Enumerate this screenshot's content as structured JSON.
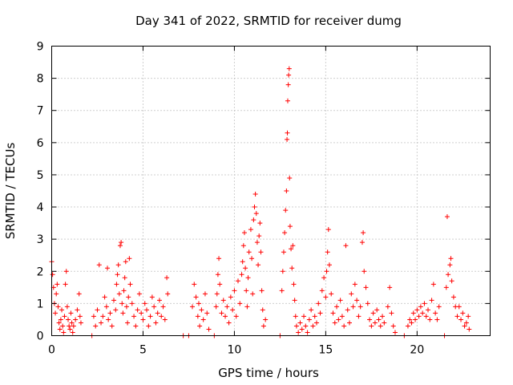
{
  "chart_data": {
    "type": "scatter",
    "title": "Day 341 of 2022, SRMTID for receiver dumg",
    "xlabel": "GPS time / hours",
    "ylabel": "SRMTID / TECUs",
    "xlim": [
      0,
      24
    ],
    "ylim": [
      0,
      9
    ],
    "xticks": [
      "0",
      "5",
      "10",
      "15",
      "20"
    ],
    "yticks": [
      "0",
      "1",
      "2",
      "3",
      "4",
      "5",
      "6",
      "7",
      "8",
      "9"
    ],
    "grid": true,
    "marker": "+",
    "color": "#ff0000",
    "series": [
      {
        "points": [
          [
            0.0,
            2.3
          ],
          [
            0.05,
            1.9
          ],
          [
            0.1,
            1.5
          ],
          [
            0.15,
            1.0
          ],
          [
            0.2,
            0.7
          ],
          [
            0.25,
            1.3
          ],
          [
            0.3,
            1.6
          ],
          [
            0.35,
            0.9
          ],
          [
            0.4,
            0.4
          ],
          [
            0.45,
            0.2
          ],
          [
            0.5,
            0.5
          ],
          [
            0.55,
            0.8
          ],
          [
            0.6,
            0.3
          ],
          [
            0.65,
            0.1
          ],
          [
            0.7,
            0.6
          ],
          [
            0.75,
            1.6
          ],
          [
            0.8,
            2.0
          ],
          [
            0.85,
            0.9
          ],
          [
            0.9,
            0.5
          ],
          [
            0.95,
            0.3
          ],
          [
            1.0,
            0.2
          ],
          [
            1.05,
            0.7
          ],
          [
            1.1,
            0.4
          ],
          [
            1.15,
            0.1
          ],
          [
            1.2,
            0.3
          ],
          [
            1.3,
            0.5
          ],
          [
            1.4,
            0.8
          ],
          [
            1.5,
            1.3
          ],
          [
            1.55,
            0.6
          ],
          [
            1.6,
            0.4
          ],
          [
            2.2,
            0.0
          ],
          [
            2.3,
            0.6
          ],
          [
            2.4,
            0.3
          ],
          [
            2.5,
            0.8
          ],
          [
            2.6,
            2.2
          ],
          [
            2.7,
            0.4
          ],
          [
            2.8,
            0.6
          ],
          [
            2.9,
            1.2
          ],
          [
            3.0,
            0.9
          ],
          [
            3.05,
            2.1
          ],
          [
            3.1,
            0.5
          ],
          [
            3.2,
            0.7
          ],
          [
            3.3,
            0.3
          ],
          [
            3.4,
            1.1
          ],
          [
            3.5,
            0.8
          ],
          [
            3.55,
            1.6
          ],
          [
            3.6,
            1.9
          ],
          [
            3.65,
            2.2
          ],
          [
            3.7,
            1.3
          ],
          [
            3.75,
            2.8
          ],
          [
            3.8,
            2.9
          ],
          [
            3.85,
            1.0
          ],
          [
            3.9,
            0.7
          ],
          [
            3.95,
            1.4
          ],
          [
            4.0,
            1.8
          ],
          [
            4.05,
            2.3
          ],
          [
            4.1,
            0.9
          ],
          [
            4.15,
            0.4
          ],
          [
            4.2,
            1.2
          ],
          [
            4.25,
            2.4
          ],
          [
            4.3,
            1.6
          ],
          [
            4.4,
            1.0
          ],
          [
            4.5,
            0.6
          ],
          [
            4.6,
            0.3
          ],
          [
            4.7,
            0.8
          ],
          [
            4.8,
            1.3
          ],
          [
            4.9,
            0.7
          ],
          [
            5.0,
            0.5
          ],
          [
            5.1,
            1.0
          ],
          [
            5.2,
            0.8
          ],
          [
            5.3,
            0.3
          ],
          [
            5.4,
            0.6
          ],
          [
            5.5,
            1.2
          ],
          [
            5.6,
            0.9
          ],
          [
            5.7,
            0.4
          ],
          [
            5.8,
            0.7
          ],
          [
            5.9,
            1.1
          ],
          [
            6.0,
            0.6
          ],
          [
            6.1,
            0.9
          ],
          [
            6.2,
            0.5
          ],
          [
            6.3,
            1.8
          ],
          [
            6.35,
            1.3
          ],
          [
            7.2,
            0.0
          ],
          [
            7.5,
            0.0
          ],
          [
            7.7,
            0.9
          ],
          [
            7.8,
            1.6
          ],
          [
            7.9,
            1.2
          ],
          [
            8.0,
            0.6
          ],
          [
            8.05,
            1.0
          ],
          [
            8.1,
            0.3
          ],
          [
            8.2,
            0.8
          ],
          [
            8.3,
            0.5
          ],
          [
            8.4,
            1.3
          ],
          [
            8.5,
            0.7
          ],
          [
            8.6,
            0.2
          ],
          [
            8.9,
            0.0
          ],
          [
            9.0,
            0.9
          ],
          [
            9.05,
            1.3
          ],
          [
            9.1,
            1.9
          ],
          [
            9.15,
            2.4
          ],
          [
            9.2,
            1.6
          ],
          [
            9.3,
            0.7
          ],
          [
            9.4,
            1.1
          ],
          [
            9.5,
            0.6
          ],
          [
            9.6,
            0.9
          ],
          [
            9.7,
            0.4
          ],
          [
            9.8,
            1.2
          ],
          [
            9.9,
            0.8
          ],
          [
            10.0,
            1.4
          ],
          [
            10.1,
            0.6
          ],
          [
            10.2,
            1.7
          ],
          [
            10.3,
            1.0
          ],
          [
            10.4,
            1.9
          ],
          [
            10.45,
            2.3
          ],
          [
            10.5,
            2.8
          ],
          [
            10.55,
            3.2
          ],
          [
            10.6,
            2.1
          ],
          [
            10.65,
            1.4
          ],
          [
            10.7,
            0.9
          ],
          [
            10.75,
            1.8
          ],
          [
            10.8,
            2.6
          ],
          [
            10.9,
            3.3
          ],
          [
            10.95,
            2.4
          ],
          [
            11.0,
            1.3
          ],
          [
            11.05,
            3.6
          ],
          [
            11.1,
            4.0
          ],
          [
            11.15,
            4.4
          ],
          [
            11.2,
            3.8
          ],
          [
            11.25,
            2.9
          ],
          [
            11.3,
            2.2
          ],
          [
            11.35,
            3.1
          ],
          [
            11.4,
            3.5
          ],
          [
            11.45,
            2.6
          ],
          [
            11.5,
            1.4
          ],
          [
            11.55,
            0.8
          ],
          [
            11.6,
            0.3
          ],
          [
            11.7,
            0.5
          ],
          [
            12.5,
            0.0
          ],
          [
            12.6,
            1.4
          ],
          [
            12.65,
            2.0
          ],
          [
            12.7,
            2.6
          ],
          [
            12.75,
            3.2
          ],
          [
            12.8,
            3.9
          ],
          [
            12.85,
            4.5
          ],
          [
            12.88,
            6.1
          ],
          [
            12.9,
            6.3
          ],
          [
            12.92,
            7.3
          ],
          [
            12.95,
            7.8
          ],
          [
            12.97,
            8.1
          ],
          [
            13.0,
            8.3
          ],
          [
            13.02,
            4.9
          ],
          [
            13.05,
            3.4
          ],
          [
            13.1,
            2.7
          ],
          [
            13.15,
            2.1
          ],
          [
            13.2,
            2.8
          ],
          [
            13.25,
            1.6
          ],
          [
            13.3,
            1.1
          ],
          [
            13.35,
            0.6
          ],
          [
            13.4,
            0.3
          ],
          [
            13.5,
            0.1
          ],
          [
            13.6,
            0.4
          ],
          [
            13.7,
            0.2
          ],
          [
            13.8,
            0.6
          ],
          [
            13.9,
            0.3
          ],
          [
            14.0,
            0.1
          ],
          [
            14.1,
            0.5
          ],
          [
            14.2,
            0.8
          ],
          [
            14.3,
            0.3
          ],
          [
            14.4,
            0.6
          ],
          [
            14.5,
            0.4
          ],
          [
            14.6,
            1.0
          ],
          [
            14.7,
            0.7
          ],
          [
            14.8,
            1.4
          ],
          [
            14.9,
            1.8
          ],
          [
            15.0,
            1.2
          ],
          [
            15.05,
            2.0
          ],
          [
            15.1,
            2.6
          ],
          [
            15.15,
            3.3
          ],
          [
            15.2,
            2.2
          ],
          [
            15.3,
            1.3
          ],
          [
            15.4,
            0.7
          ],
          [
            15.5,
            0.4
          ],
          [
            15.6,
            0.9
          ],
          [
            15.7,
            0.5
          ],
          [
            15.8,
            1.1
          ],
          [
            15.9,
            0.6
          ],
          [
            16.0,
            0.3
          ],
          [
            16.1,
            2.8
          ],
          [
            16.2,
            0.8
          ],
          [
            16.3,
            0.4
          ],
          [
            16.4,
            1.3
          ],
          [
            16.5,
            0.9
          ],
          [
            16.6,
            1.6
          ],
          [
            16.7,
            1.1
          ],
          [
            16.8,
            0.6
          ],
          [
            16.9,
            0.9
          ],
          [
            17.0,
            2.9
          ],
          [
            17.05,
            3.2
          ],
          [
            17.1,
            2.0
          ],
          [
            17.2,
            1.5
          ],
          [
            17.3,
            1.0
          ],
          [
            17.4,
            0.5
          ],
          [
            17.5,
            0.3
          ],
          [
            17.6,
            0.7
          ],
          [
            17.7,
            0.4
          ],
          [
            17.8,
            0.8
          ],
          [
            17.9,
            0.5
          ],
          [
            18.0,
            0.3
          ],
          [
            18.1,
            0.6
          ],
          [
            18.2,
            0.4
          ],
          [
            18.4,
            0.9
          ],
          [
            18.5,
            1.5
          ],
          [
            18.6,
            0.7
          ],
          [
            18.7,
            0.3
          ],
          [
            18.8,
            0.1
          ],
          [
            19.3,
            0.0
          ],
          [
            19.5,
            0.3
          ],
          [
            19.6,
            0.5
          ],
          [
            19.7,
            0.4
          ],
          [
            19.8,
            0.7
          ],
          [
            19.9,
            0.5
          ],
          [
            20.0,
            0.8
          ],
          [
            20.1,
            0.6
          ],
          [
            20.2,
            0.9
          ],
          [
            20.3,
            0.7
          ],
          [
            20.4,
            1.0
          ],
          [
            20.5,
            0.6
          ],
          [
            20.6,
            0.8
          ],
          [
            20.7,
            0.5
          ],
          [
            20.8,
            1.1
          ],
          [
            20.9,
            1.6
          ],
          [
            21.0,
            0.7
          ],
          [
            21.1,
            0.5
          ],
          [
            21.2,
            0.9
          ],
          [
            21.5,
            0.0
          ],
          [
            21.6,
            1.5
          ],
          [
            21.65,
            3.7
          ],
          [
            21.7,
            1.9
          ],
          [
            21.8,
            2.2
          ],
          [
            21.85,
            2.4
          ],
          [
            21.9,
            1.7
          ],
          [
            22.0,
            1.2
          ],
          [
            22.1,
            0.9
          ],
          [
            22.2,
            0.6
          ],
          [
            22.3,
            0.9
          ],
          [
            22.4,
            0.5
          ],
          [
            22.5,
            0.7
          ],
          [
            22.6,
            0.3
          ],
          [
            22.7,
            0.4
          ],
          [
            22.8,
            0.6
          ],
          [
            22.85,
            0.2
          ]
        ]
      }
    ]
  }
}
